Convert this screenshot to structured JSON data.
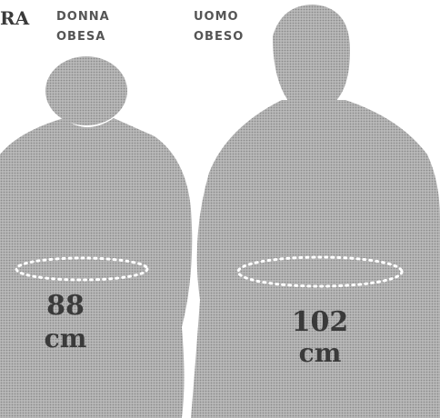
{
  "corner_text": "RA",
  "figures": [
    {
      "label_lines": [
        "DONNA",
        "OBESA"
      ],
      "waist": "88",
      "unit": "cm"
    },
    {
      "label_lines": [
        "UOMO",
        "OBESO"
      ],
      "waist": "102",
      "unit": "cm"
    }
  ]
}
